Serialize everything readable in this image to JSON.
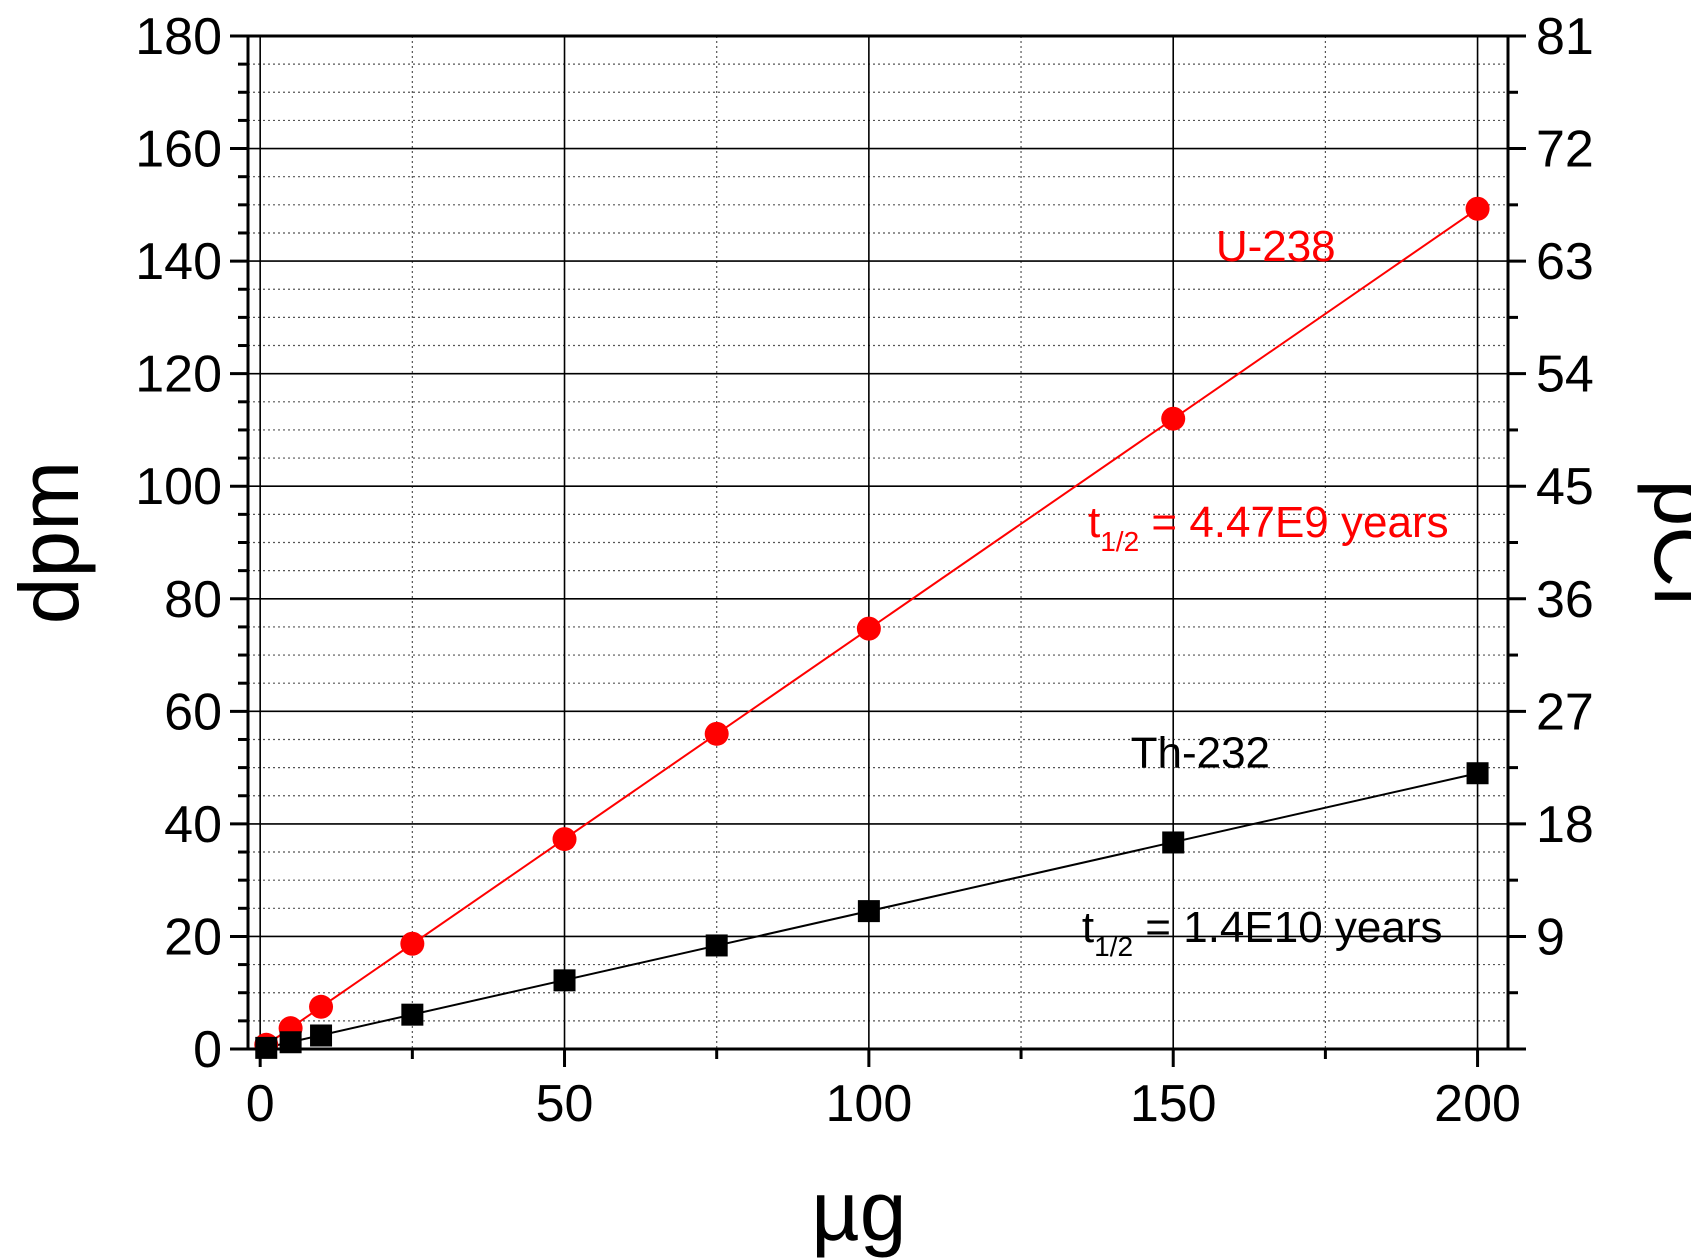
{
  "chart_data": {
    "type": "scatter",
    "xlabel": "µg",
    "ylabel": "dpm",
    "y2label": "pCi",
    "xlim": [
      -2,
      205
    ],
    "ylim": [
      0,
      180
    ],
    "y2lim": [
      0,
      81
    ],
    "x_ticks": [
      0,
      50,
      100,
      150,
      200
    ],
    "y_ticks": [
      0,
      20,
      40,
      60,
      80,
      100,
      120,
      140,
      160,
      180
    ],
    "y2_ticks": [
      9,
      18,
      27,
      36,
      45,
      54,
      63,
      72,
      81
    ],
    "grid": true,
    "series": [
      {
        "name": "U-238",
        "marker": "circle",
        "color": "#ff0000",
        "x": [
          1,
          5,
          10,
          25,
          50,
          75,
          100,
          150,
          200
        ],
        "y": [
          0.75,
          3.7,
          7.5,
          18.7,
          37.3,
          56,
          74.7,
          112,
          149.3
        ],
        "fit_line": [
          [
            0,
            0
          ],
          [
            200,
            149.3
          ]
        ]
      },
      {
        "name": "Th-232",
        "marker": "square",
        "color": "#000000",
        "x": [
          1,
          5,
          10,
          25,
          50,
          75,
          100,
          150,
          200
        ],
        "y": [
          0.2,
          1.2,
          2.4,
          6.1,
          12.2,
          18.4,
          24.5,
          36.7,
          49
        ],
        "fit_line": [
          [
            0,
            0
          ],
          [
            200,
            49
          ]
        ]
      }
    ],
    "annotations": [
      {
        "id": "u238-label",
        "text": "U-238",
        "color": "#ff0000",
        "x": 157,
        "y": 140
      },
      {
        "id": "u238-halflife",
        "prefix": "t",
        "sub": "1/2",
        "text": " = 4.47E9 years",
        "color": "#ff0000",
        "x": 136,
        "y": 91
      },
      {
        "id": "th232-label",
        "text": "Th-232",
        "color": "#000000",
        "x": 143,
        "y": 50
      },
      {
        "id": "th232-halflife",
        "prefix": "t",
        "sub": "1/2",
        "text": " = 1.4E10 years",
        "color": "#000000",
        "x": 135,
        "y": 19
      }
    ]
  }
}
